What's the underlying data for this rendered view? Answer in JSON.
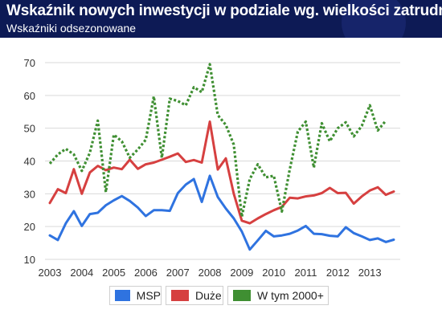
{
  "header": {
    "title": "Wskaźnik nowych inwestycji w podziale wg. wielkości zatrudnienia",
    "subtitle": "Wskaźniki odsezonowane"
  },
  "colors": {
    "header_bg": "#0d1a55",
    "msp": "#2f73e0",
    "duze": "#d64040",
    "w_tym": "#3f8f32"
  },
  "legend": [
    {
      "label": "MSP",
      "color": "#2f73e0"
    },
    {
      "label": "Duże",
      "color": "#d64040"
    },
    {
      "label": "W tym 2000+",
      "color": "#3f8f32"
    }
  ],
  "chart_data": {
    "type": "line",
    "title": "Wskaźnik nowych inwestycji w podziale wg. wielkości zatrudnienia",
    "subtitle": "Wskaźniki odsezonowane",
    "xlim": [
      2003,
      2013.85
    ],
    "ylim": [
      10,
      70
    ],
    "yticks": [
      10,
      20,
      30,
      40,
      50,
      60,
      70
    ],
    "xticks": [
      "2003",
      "2004",
      "2005",
      "2006",
      "2007",
      "2008",
      "2009",
      "2010",
      "2011",
      "2012",
      "2013"
    ],
    "grid": true,
    "legend_position": "bottom",
    "x_start": 2003,
    "x_step": 0.25,
    "series": [
      {
        "name": "MSP",
        "style": "solid",
        "color": "#2f73e0",
        "values": [
          17.3,
          15.9,
          21.0,
          24.7,
          20.2,
          23.8,
          24.2,
          26.5,
          28.0,
          29.3,
          27.8,
          25.8,
          23.2,
          25.0,
          25.0,
          24.8,
          30.2,
          32.8,
          34.5,
          27.5,
          35.5,
          29.0,
          25.5,
          22.5,
          18.5,
          13.0,
          15.8,
          18.7,
          17.0,
          17.3,
          17.8,
          18.8,
          20.2,
          17.8,
          17.7,
          17.2,
          17.0,
          19.8,
          18.0,
          17.0,
          15.9,
          16.4,
          15.3,
          16.0
        ]
      },
      {
        "name": "Duże",
        "style": "solid",
        "color": "#d64040",
        "values": [
          27.2,
          31.4,
          30.2,
          37.5,
          30.0,
          36.5,
          38.5,
          37.2,
          38.0,
          37.5,
          40.4,
          37.6,
          39.0,
          39.5,
          40.4,
          41.3,
          42.3,
          39.7,
          40.3,
          39.5,
          52.0,
          37.4,
          40.8,
          30.0,
          21.8,
          21.0,
          22.5,
          23.8,
          25.0,
          26.0,
          28.8,
          28.6,
          29.2,
          29.5,
          30.2,
          31.8,
          30.2,
          30.3,
          27.0,
          29.2,
          31.0,
          32.0,
          29.7,
          30.7
        ]
      },
      {
        "name": "W tym 2000+",
        "style": "dashed",
        "color": "#3f8f32",
        "values": [
          39.2,
          42.0,
          43.7,
          42.0,
          37.0,
          42.5,
          52.3,
          30.5,
          48.0,
          46.0,
          41.0,
          43.5,
          46.5,
          59.7,
          41.0,
          59.0,
          58.3,
          57.0,
          62.5,
          61.0,
          69.5,
          54.0,
          51.0,
          45.0,
          23.0,
          34.5,
          39.0,
          35.0,
          35.5,
          24.6,
          37.5,
          49.0,
          52.0,
          38.0,
          51.5,
          46.0,
          50.0,
          51.8,
          47.5,
          50.7,
          57.0,
          49.3,
          52.3
        ]
      }
    ]
  }
}
